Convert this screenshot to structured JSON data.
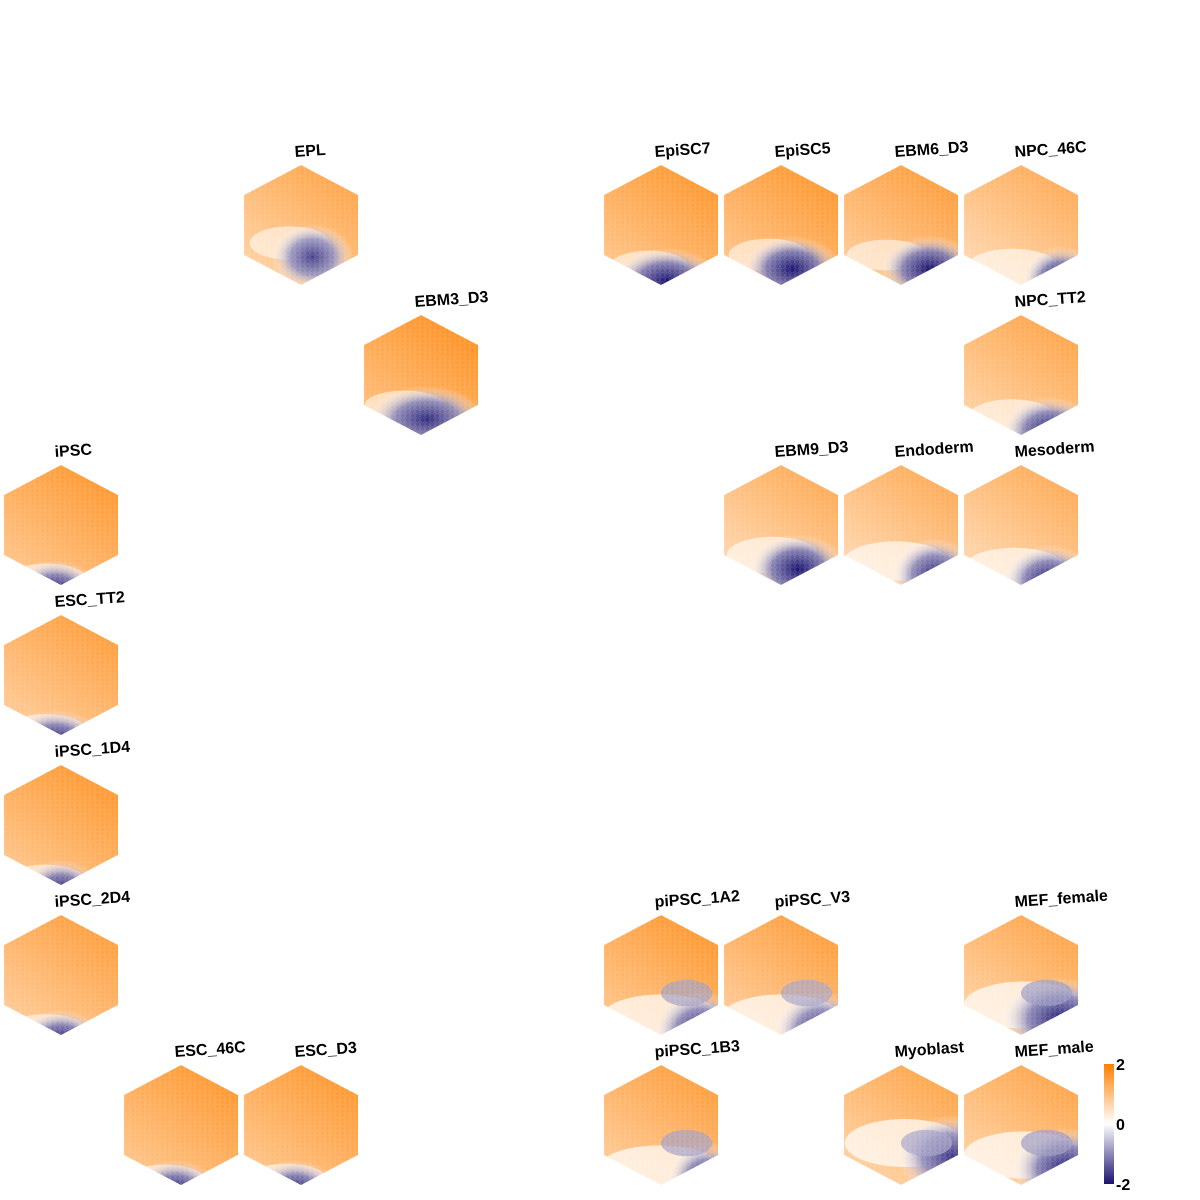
{
  "chart_data": {
    "type": "heatmap",
    "description_free": true,
    "colors": {
      "low": "#1a1270",
      "mid": "#ffffff",
      "high": "#ff8000"
    },
    "scale": {
      "min": -2,
      "mid": 0,
      "max": 2
    },
    "legend": {
      "placement": "bottom-right",
      "ticks": [
        {
          "value": 2,
          "label": "2"
        },
        {
          "value": 0,
          "label": "0"
        },
        {
          "value": -2,
          "label": "-2"
        }
      ]
    },
    "panels": [
      {
        "id": "epl",
        "label": "EPL",
        "row": 0,
        "col": 2,
        "pattern": [
          -1.6,
          0.6,
          0.7,
          0.42,
          0.9,
          0.0
        ]
      },
      {
        "id": "episc7",
        "label": "EpiSC7",
        "row": 0,
        "col": 5,
        "pattern": [
          -2.0,
          0.55,
          0.9,
          0.55,
          1.1,
          -0.1
        ]
      },
      {
        "id": "episc5",
        "label": "EpiSC5",
        "row": 0,
        "col": 6,
        "pattern": [
          -2.0,
          0.6,
          0.8,
          0.5,
          1.1,
          -0.1
        ]
      },
      {
        "id": "ebm6_d3",
        "label": "EBM6_D3",
        "row": 0,
        "col": 7,
        "pattern": [
          -2.0,
          0.75,
          0.8,
          0.5,
          1.0,
          -0.3
        ]
      },
      {
        "id": "npc_46c",
        "label": "NPC_46C",
        "row": 0,
        "col": 8,
        "pattern": [
          -2.0,
          0.85,
          0.9,
          0.35,
          0.8,
          0.3
        ]
      },
      {
        "id": "ebm3_d3",
        "label": "EBM3_D3",
        "row": 1,
        "col": 3,
        "pattern": [
          -1.8,
          0.55,
          0.8,
          0.6,
          1.2,
          -0.5
        ]
      },
      {
        "id": "npc_tt2",
        "label": "NPC_TT2",
        "row": 1,
        "col": 8,
        "pattern": [
          -1.9,
          0.75,
          0.9,
          0.45,
          0.9,
          0.2
        ]
      },
      {
        "id": "ipsc",
        "label": "iPSC",
        "row": 2,
        "col": 0,
        "pattern": [
          -2.0,
          0.45,
          1.0,
          0.45,
          1.1,
          -0.3
        ]
      },
      {
        "id": "ebm9_d3",
        "label": "EBM9_D3",
        "row": 2,
        "col": 6,
        "pattern": [
          -2.0,
          0.65,
          0.8,
          0.45,
          0.8,
          0.3
        ]
      },
      {
        "id": "endoderm",
        "label": "Endoderm",
        "row": 2,
        "col": 7,
        "pattern": [
          -1.8,
          0.8,
          0.85,
          0.35,
          0.8,
          0.6
        ]
      },
      {
        "id": "mesoderm",
        "label": "Mesoderm",
        "row": 2,
        "col": 8,
        "pattern": [
          -1.9,
          0.75,
          0.9,
          0.4,
          0.8,
          0.5
        ]
      },
      {
        "id": "esc_tt2",
        "label": "ESC_TT2",
        "row": 3,
        "col": 0,
        "pattern": [
          -2.0,
          0.45,
          1.0,
          0.5,
          1.0,
          -0.4
        ]
      },
      {
        "id": "ipsc_1d4",
        "label": "iPSC_1D4",
        "row": 4,
        "col": 0,
        "pattern": [
          -2.0,
          0.5,
          1.0,
          0.42,
          1.1,
          -0.5
        ]
      },
      {
        "id": "ipsc_2d4",
        "label": "iPSC_2D4",
        "row": 5,
        "col": 0,
        "pattern": [
          -2.0,
          0.5,
          1.0,
          0.45,
          1.0,
          -0.4
        ]
      },
      {
        "id": "pipsc_1a2",
        "label": "piPSC_1A2",
        "row": 5,
        "col": 5,
        "pattern": [
          -1.8,
          0.85,
          0.9,
          0.3,
          1.1,
          1.2
        ]
      },
      {
        "id": "pipsc_v3",
        "label": "piPSC_V3",
        "row": 5,
        "col": 6,
        "pattern": [
          -1.7,
          0.85,
          0.9,
          0.3,
          1.0,
          1.2
        ]
      },
      {
        "id": "mef_female",
        "label": "MEF_female",
        "row": 5,
        "col": 8,
        "pattern": [
          -1.9,
          0.85,
          0.8,
          0.4,
          0.9,
          1.4
        ]
      },
      {
        "id": "esc_46c",
        "label": "ESC_46C",
        "row": 6,
        "col": 1,
        "pattern": [
          -2.0,
          0.45,
          1.0,
          0.45,
          1.1,
          -0.5
        ]
      },
      {
        "id": "esc_d3",
        "label": "ESC_D3",
        "row": 6,
        "col": 2,
        "pattern": [
          -2.0,
          0.45,
          1.0,
          0.45,
          1.1,
          -0.3
        ]
      },
      {
        "id": "pipsc_1b3",
        "label": "piPSC_1B3",
        "row": 6,
        "col": 5,
        "pattern": [
          -1.8,
          0.9,
          0.9,
          0.25,
          1.0,
          1.0
        ]
      },
      {
        "id": "myoblast",
        "label": "Myoblast",
        "row": 6,
        "col": 7,
        "pattern": [
          -1.7,
          0.95,
          0.7,
          0.35,
          0.9,
          1.5
        ]
      },
      {
        "id": "mef_male",
        "label": "MEF_male",
        "row": 6,
        "col": 8,
        "pattern": [
          -1.9,
          0.9,
          0.8,
          0.35,
          0.9,
          1.4
        ]
      }
    ]
  }
}
